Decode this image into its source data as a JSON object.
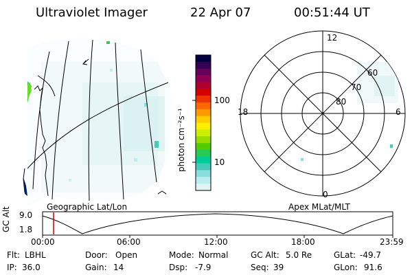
{
  "header": {
    "instrument": "Ultraviolet Imager",
    "date": "22 Apr 07",
    "time": "00:51:44 UT"
  },
  "colorbar": {
    "unit_label": "photon cm⁻²s⁻¹",
    "ticks": [
      "100",
      "10"
    ],
    "colors": [
      "#000040",
      "#330055",
      "#66005a",
      "#900055",
      "#b00030",
      "#d40000",
      "#ee3300",
      "#ff6600",
      "#ff9900",
      "#ffcc00",
      "#ffee00",
      "#ccee00",
      "#99dd00",
      "#55cc00",
      "#22cc55",
      "#00cc99",
      "#44ccbb",
      "#88dddd",
      "#bbeeee",
      "#e0f4f4"
    ]
  },
  "polar": {
    "mlt_labels": {
      "top": "12",
      "left": "18",
      "right": "6",
      "bottom": "0"
    },
    "lat_labels": [
      "60",
      "70",
      "80"
    ]
  },
  "geo_panel_label": "Geographic Lat/Lon",
  "apex_panel_label": "Apex MLat/MLT",
  "timeline": {
    "y_label": "GC Alt",
    "y_ticks": [
      "9.0",
      "1.8"
    ],
    "x_ticks": [
      "00:00",
      "06:00",
      "12:00",
      "18:00",
      "23:59"
    ],
    "marker_time": "00:51"
  },
  "footer": {
    "row1": [
      {
        "label": "Flt:",
        "value": "LBHL"
      },
      {
        "label": "Door:",
        "value": "Open"
      },
      {
        "label": "Mode:",
        "value": "Normal"
      },
      {
        "label": "GC Alt:",
        "value": "5.0 Re"
      },
      {
        "label": "GLat:",
        "value": "-49.7"
      }
    ],
    "row2": [
      {
        "label": "IP:",
        "value": "36.0"
      },
      {
        "label": "Gain:",
        "value": "14"
      },
      {
        "label": "Dsp:",
        "value": "-7.9"
      },
      {
        "label": "Seq:",
        "value": "39"
      },
      {
        "label": "GLon:",
        "value": "91.6"
      }
    ]
  }
}
